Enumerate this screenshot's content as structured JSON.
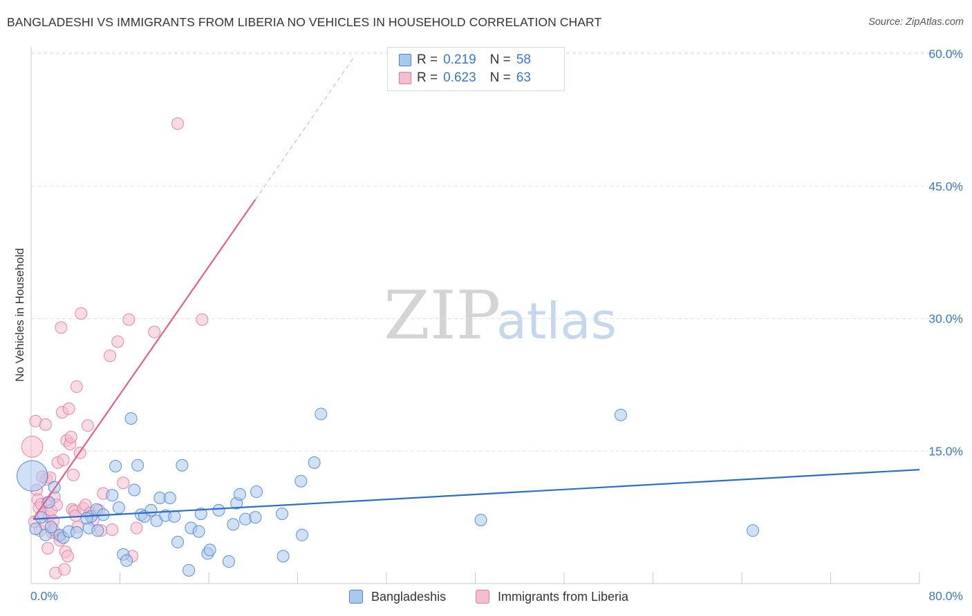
{
  "title": "BANGLADESHI VS IMMIGRANTS FROM LIBERIA NO VEHICLES IN HOUSEHOLD CORRELATION CHART",
  "source": "Source: ZipAtlas.com",
  "watermark": {
    "zip": "ZIP",
    "atlas": "atlas"
  },
  "colors": {
    "blue_fill": "#a9c8ee",
    "blue_stroke": "#4a84d0",
    "blue_line": "#2a6dcc",
    "pink_fill": "#f6bcd0",
    "pink_stroke": "#e07c9f",
    "pink_line": "#e0608a",
    "axis_text": "#3a78c8",
    "grid": "#e2e2e2"
  },
  "stats": [
    {
      "swatch": "blue",
      "r_label": "R =",
      "r_value": "0.219",
      "n_label": "N =",
      "n_value": "58"
    },
    {
      "swatch": "pink",
      "r_label": "R =",
      "r_value": "0.623",
      "n_label": "N =",
      "n_value": "63"
    }
  ],
  "chart_data": {
    "type": "scatter",
    "title": "BANGLADESHI VS IMMIGRANTS FROM LIBERIA NO VEHICLES IN HOUSEHOLD CORRELATION CHART",
    "xlabel": "",
    "ylabel": "No Vehicles in Household",
    "xlim": [
      0,
      80
    ],
    "ylim": [
      0,
      60
    ],
    "x_tick_labels": [
      {
        "value": 0,
        "label": "0.0%"
      },
      {
        "value": 80,
        "label": "80.0%"
      }
    ],
    "y_tick_labels": [
      {
        "value": 15,
        "label": "15.0%"
      },
      {
        "value": 30,
        "label": "30.0%"
      },
      {
        "value": 45,
        "label": "45.0%"
      },
      {
        "value": 60,
        "label": "60.0%"
      }
    ],
    "x_minor_ticks": [
      0,
      8,
      16,
      24,
      32,
      40,
      48,
      56,
      64,
      72,
      80
    ],
    "legend_position": "bottom-center",
    "series": [
      {
        "name": "Bangladeshis",
        "color": "blue",
        "trend": {
          "x": [
            0,
            80
          ],
          "y": [
            7.3,
            12.9
          ],
          "dashed_extension": false
        },
        "points": [
          [
            0.1,
            12.2,
            2.6
          ],
          [
            0.4,
            6.2,
            1
          ],
          [
            0.9,
            7.5,
            1
          ],
          [
            1.3,
            5.5,
            1
          ],
          [
            1.8,
            6.4,
            1
          ],
          [
            2.1,
            10.9,
            1
          ],
          [
            2.6,
            5.5,
            1
          ],
          [
            2.9,
            5.2,
            1
          ],
          [
            3.4,
            5.9,
            1
          ],
          [
            4.1,
            5.8,
            1
          ],
          [
            5.2,
            6.3,
            1
          ],
          [
            5.4,
            7.6,
            1
          ],
          [
            5.9,
            8.4,
            1
          ],
          [
            6.5,
            7.8,
            1
          ],
          [
            5.0,
            7.4,
            1
          ],
          [
            7.3,
            10.0,
            1
          ],
          [
            6.0,
            6.0,
            1
          ],
          [
            7.6,
            13.3,
            1
          ],
          [
            7.9,
            8.6,
            1
          ],
          [
            8.3,
            3.3,
            1
          ],
          [
            8.6,
            2.6,
            1
          ],
          [
            9.0,
            18.7,
            1
          ],
          [
            9.3,
            10.6,
            1
          ],
          [
            9.6,
            13.4,
            1
          ],
          [
            9.9,
            7.8,
            1
          ],
          [
            10.2,
            7.6,
            1
          ],
          [
            10.8,
            8.3,
            1
          ],
          [
            11.3,
            7.1,
            1
          ],
          [
            11.6,
            9.7,
            1
          ],
          [
            12.1,
            7.7,
            1
          ],
          [
            12.5,
            9.7,
            1
          ],
          [
            12.9,
            7.6,
            1
          ],
          [
            13.2,
            4.7,
            1
          ],
          [
            13.6,
            13.4,
            1
          ],
          [
            14.2,
            1.5,
            1
          ],
          [
            14.4,
            6.3,
            1
          ],
          [
            15.1,
            5.9,
            1
          ],
          [
            15.3,
            7.9,
            1
          ],
          [
            15.9,
            3.4,
            1
          ],
          [
            16.1,
            3.8,
            1
          ],
          [
            16.9,
            8.3,
            1
          ],
          [
            17.8,
            2.5,
            1
          ],
          [
            18.2,
            6.7,
            1
          ],
          [
            18.5,
            9.1,
            1
          ],
          [
            18.8,
            10.1,
            1
          ],
          [
            19.3,
            7.3,
            1
          ],
          [
            20.2,
            7.5,
            1
          ],
          [
            20.3,
            10.4,
            1
          ],
          [
            22.6,
            7.9,
            1
          ],
          [
            22.7,
            3.1,
            1
          ],
          [
            24.3,
            11.6,
            1
          ],
          [
            24.4,
            5.5,
            1
          ],
          [
            25.5,
            13.7,
            1
          ],
          [
            26.1,
            19.2,
            1
          ],
          [
            40.5,
            7.2,
            1
          ],
          [
            53.1,
            19.1,
            1
          ],
          [
            65.0,
            6.0,
            1
          ],
          [
            1.6,
            9.2,
            1
          ]
        ]
      },
      {
        "name": "Immigrants from Liberia",
        "color": "pink",
        "trend": {
          "x": [
            0,
            20.2
          ],
          "y": [
            7.3,
            43.5
          ],
          "dashed_extension": true,
          "dashed_to": [
            29,
            59.5
          ]
        },
        "points": [
          [
            0.1,
            15.5,
            1.8
          ],
          [
            0.4,
            18.4,
            1
          ],
          [
            0.5,
            10.6,
            1
          ],
          [
            0.6,
            9.5,
            1
          ],
          [
            0.7,
            8.6,
            1
          ],
          [
            0.8,
            6.0,
            1
          ],
          [
            0.9,
            9.0,
            1
          ],
          [
            1.1,
            7.9,
            1
          ],
          [
            1.2,
            6.8,
            1
          ],
          [
            1.3,
            18.0,
            1
          ],
          [
            1.4,
            11.8,
            1
          ],
          [
            1.5,
            9.2,
            1
          ],
          [
            1.6,
            7.6,
            1
          ],
          [
            1.7,
            12.0,
            1
          ],
          [
            1.8,
            8.3,
            1
          ],
          [
            1.9,
            5.8,
            1
          ],
          [
            2.0,
            7.1,
            1
          ],
          [
            2.1,
            9.8,
            1
          ],
          [
            2.2,
            1.2,
            1
          ],
          [
            2.3,
            8.9,
            1
          ],
          [
            2.4,
            13.7,
            1
          ],
          [
            2.5,
            5.4,
            1
          ],
          [
            2.6,
            4.9,
            1
          ],
          [
            2.7,
            29.0,
            1
          ],
          [
            2.8,
            19.4,
            1
          ],
          [
            2.9,
            14.0,
            1
          ],
          [
            3.0,
            1.6,
            1
          ],
          [
            3.1,
            3.6,
            1
          ],
          [
            3.2,
            16.2,
            1
          ],
          [
            3.3,
            3.1,
            1
          ],
          [
            3.4,
            19.8,
            1
          ],
          [
            3.5,
            15.8,
            1
          ],
          [
            3.6,
            16.6,
            1
          ],
          [
            3.7,
            8.4,
            1
          ],
          [
            3.9,
            8.2,
            1
          ],
          [
            4.0,
            7.7,
            1
          ],
          [
            4.1,
            22.3,
            1
          ],
          [
            4.2,
            6.4,
            1
          ],
          [
            4.4,
            14.8,
            1
          ],
          [
            4.5,
            30.6,
            1
          ],
          [
            4.7,
            8.5,
            1
          ],
          [
            4.9,
            8.9,
            1
          ],
          [
            5.1,
            17.9,
            1
          ],
          [
            5.3,
            8.0,
            1
          ],
          [
            5.6,
            7.2,
            1
          ],
          [
            6.1,
            8.3,
            1
          ],
          [
            6.3,
            6.0,
            1
          ],
          [
            6.5,
            10.2,
            1
          ],
          [
            7.1,
            25.8,
            1
          ],
          [
            7.3,
            6.1,
            1
          ],
          [
            7.8,
            27.4,
            1
          ],
          [
            8.3,
            11.4,
            1
          ],
          [
            8.8,
            29.9,
            1
          ],
          [
            9.1,
            3.1,
            1
          ],
          [
            9.5,
            6.3,
            1
          ],
          [
            11.1,
            28.5,
            1
          ],
          [
            13.2,
            52.1,
            1
          ],
          [
            15.4,
            29.9,
            1
          ],
          [
            1.0,
            12.1,
            1
          ],
          [
            0.3,
            7.0,
            1
          ],
          [
            2.0,
            6.1,
            1
          ],
          [
            1.5,
            4.0,
            1
          ],
          [
            3.8,
            12.3,
            1
          ]
        ]
      }
    ]
  }
}
